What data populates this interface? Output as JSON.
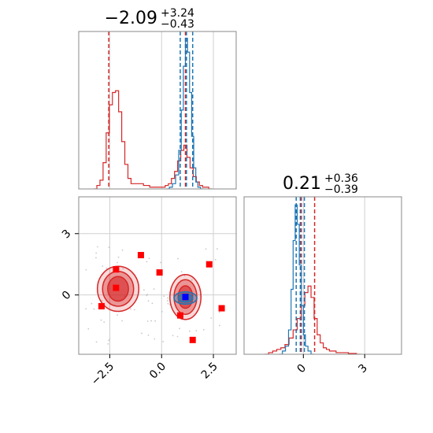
{
  "chart_data": [
    {
      "type": "histogram",
      "panel": "top-left marginal (parameter 1)",
      "title": {
        "value": "−2.09",
        "plus": "+3.24",
        "minus": "−0.43"
      },
      "xlim": [
        -4.0,
        3.6
      ],
      "grid": true,
      "gridlines_x": [
        -2.5,
        0.0,
        2.5
      ],
      "series": [
        {
          "color": "#d62728",
          "quantile_lines": [
            -2.55,
            1.15
          ],
          "bins": [
            [
              -3.2,
              0.0
            ],
            [
              -3.05,
              0.02
            ],
            [
              -2.9,
              0.05
            ],
            [
              -2.75,
              0.15
            ],
            [
              -2.6,
              0.32
            ],
            [
              -2.45,
              0.48
            ],
            [
              -2.3,
              0.55
            ],
            [
              -2.15,
              0.56
            ],
            [
              -2.0,
              0.44
            ],
            [
              -1.85,
              0.27
            ],
            [
              -1.7,
              0.14
            ],
            [
              -1.55,
              0.06
            ],
            [
              -1.4,
              0.03
            ],
            [
              -1.25,
              0.03
            ],
            [
              -1.1,
              0.03
            ],
            [
              -0.95,
              0.03
            ],
            [
              -0.8,
              0.02
            ],
            [
              -0.65,
              0.02
            ],
            [
              -0.5,
              0.01
            ],
            [
              -0.35,
              0.01
            ],
            [
              -0.2,
              0.01
            ],
            [
              -0.05,
              0.01
            ],
            [
              0.1,
              0.01
            ],
            [
              0.25,
              0.02
            ],
            [
              0.4,
              0.03
            ],
            [
              0.55,
              0.06
            ],
            [
              0.7,
              0.1
            ],
            [
              0.85,
              0.16
            ],
            [
              1.0,
              0.22
            ],
            [
              1.15,
              0.25
            ],
            [
              1.3,
              0.18
            ],
            [
              1.45,
              0.12
            ],
            [
              1.6,
              0.07
            ],
            [
              1.75,
              0.04
            ],
            [
              1.9,
              0.02
            ],
            [
              2.05,
              0.01
            ],
            [
              2.2,
              0.01
            ],
            [
              2.35,
              0.0
            ]
          ]
        },
        {
          "color": "#1f77b4",
          "quantile_lines": [
            0.9,
            1.2,
            1.5
          ],
          "bins": [
            [
              0.3,
              0.0
            ],
            [
              0.45,
              0.01
            ],
            [
              0.6,
              0.03
            ],
            [
              0.75,
              0.08
            ],
            [
              0.9,
              0.22
            ],
            [
              1.0,
              0.45
            ],
            [
              1.1,
              0.7
            ],
            [
              1.2,
              0.86
            ],
            [
              1.3,
              0.78
            ],
            [
              1.4,
              0.55
            ],
            [
              1.5,
              0.3
            ],
            [
              1.6,
              0.12
            ],
            [
              1.7,
              0.04
            ],
            [
              1.8,
              0.01
            ],
            [
              1.95,
              0.0
            ]
          ]
        }
      ]
    },
    {
      "type": "scatter",
      "panel": "bottom-left 2D density (parameter 1 vs parameter 2)",
      "xlim": [
        -4.0,
        3.6
      ],
      "ylim": [
        -2.9,
        4.8
      ],
      "grid": true,
      "x_ticks": [
        {
          "value": -2.5,
          "label": "−2.5"
        },
        {
          "value": 0.0,
          "label": "0.0"
        },
        {
          "value": 2.5,
          "label": "2.5"
        }
      ],
      "y_ticks": [
        {
          "value": 0,
          "label": "0"
        },
        {
          "value": 3,
          "label": "3"
        }
      ],
      "contours": [
        {
          "color": "#d62728",
          "center": [
            -2.1,
            0.3
          ],
          "radii": [
            [
              1.0,
              1.1
            ],
            [
              0.75,
              0.85
            ],
            [
              0.5,
              0.6
            ]
          ]
        },
        {
          "color": "#d62728",
          "center": [
            1.15,
            -0.1
          ],
          "radii": [
            [
              0.75,
              1.1
            ],
            [
              0.55,
              0.85
            ],
            [
              0.35,
              0.55
            ]
          ]
        },
        {
          "color": "#1f77b4",
          "center": [
            1.15,
            -0.15
          ],
          "radii": [
            [
              0.55,
              0.3
            ],
            [
              0.35,
              0.2
            ]
          ]
        }
      ],
      "red_squares": [
        [
          -2.2,
          1.25
        ],
        [
          -2.2,
          0.35
        ],
        [
          -1.0,
          1.95
        ],
        [
          -0.1,
          1.1
        ],
        [
          -2.9,
          -0.55
        ],
        [
          0.9,
          -1.0
        ],
        [
          1.5,
          -2.2
        ],
        [
          2.3,
          1.5
        ],
        [
          2.9,
          -0.65
        ],
        [
          1.15,
          -0.1
        ]
      ],
      "blue_square": [
        1.15,
        -0.1
      ]
    },
    {
      "type": "histogram",
      "panel": "bottom-right marginal (parameter 2)",
      "title": {
        "value": "0.21",
        "plus": "+0.36",
        "minus": "−0.39"
      },
      "xlim": [
        -2.9,
        4.8
      ],
      "grid": true,
      "x_ticks": [
        {
          "value": 0,
          "label": "0"
        },
        {
          "value": 3,
          "label": "3"
        }
      ],
      "series": [
        {
          "color": "#d62728",
          "quantile_lines": [
            -0.1,
            0.55
          ],
          "bins": [
            [
              -1.8,
              0.0
            ],
            [
              -1.6,
              0.01
            ],
            [
              -1.4,
              0.02
            ],
            [
              -1.2,
              0.03
            ],
            [
              -1.0,
              0.04
            ],
            [
              -0.8,
              0.06
            ],
            [
              -0.6,
              0.1
            ],
            [
              -0.4,
              0.15
            ],
            [
              -0.2,
              0.22
            ],
            [
              0.0,
              0.3
            ],
            [
              0.15,
              0.38
            ],
            [
              0.3,
              0.42
            ],
            [
              0.45,
              0.35
            ],
            [
              0.6,
              0.22
            ],
            [
              0.75,
              0.12
            ],
            [
              0.9,
              0.07
            ],
            [
              1.05,
              0.04
            ],
            [
              1.2,
              0.03
            ],
            [
              1.35,
              0.02
            ],
            [
              1.5,
              0.02
            ],
            [
              1.7,
              0.01
            ],
            [
              1.9,
              0.01
            ],
            [
              2.1,
              0.01
            ],
            [
              2.3,
              0.005
            ],
            [
              2.5,
              0.005
            ],
            [
              2.7,
              0.0
            ]
          ]
        },
        {
          "color": "#1f77b4",
          "quantile_lines": [
            -0.35,
            -0.15,
            0.05
          ],
          "bins": [
            [
              -1.1,
              0.0
            ],
            [
              -0.95,
              0.02
            ],
            [
              -0.8,
              0.05
            ],
            [
              -0.65,
              0.15
            ],
            [
              -0.55,
              0.4
            ],
            [
              -0.45,
              0.7
            ],
            [
              -0.35,
              0.92
            ],
            [
              -0.25,
              0.8
            ],
            [
              -0.15,
              0.55
            ],
            [
              -0.05,
              0.3
            ],
            [
              0.05,
              0.12
            ],
            [
              0.15,
              0.05
            ],
            [
              0.3,
              0.02
            ],
            [
              0.45,
              0.0
            ]
          ]
        }
      ]
    }
  ]
}
